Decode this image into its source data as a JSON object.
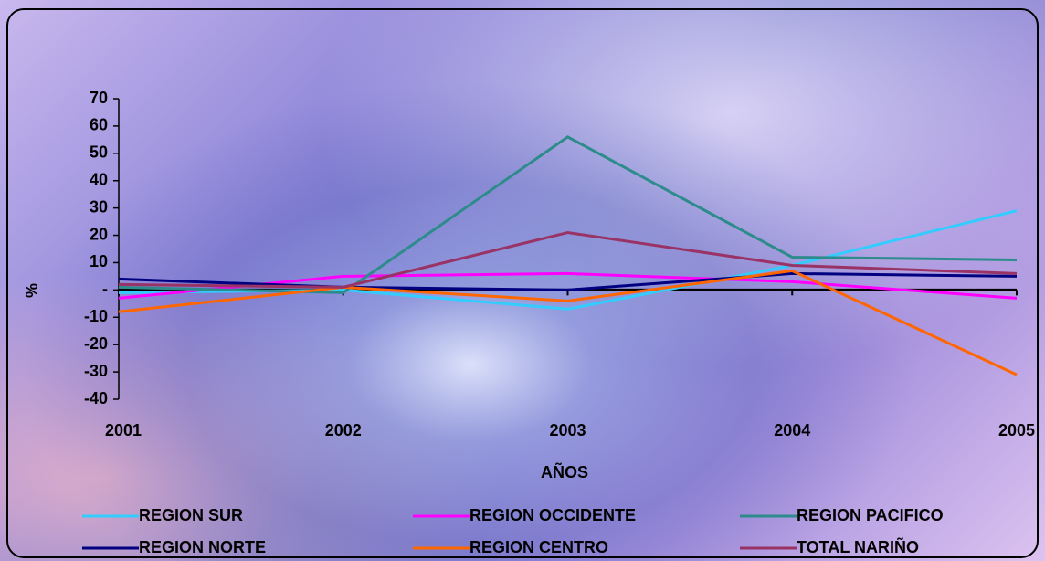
{
  "chart_data": {
    "type": "line",
    "x_label": "AÑOS",
    "y_label": "%",
    "categories": [
      "2001",
      "2002",
      "2003",
      "2004",
      "2005"
    ],
    "ylim": [
      -40,
      70
    ],
    "yticks": [
      -40,
      -30,
      -20,
      -10,
      {
        "value": 0,
        "label": "-"
      },
      10,
      20,
      30,
      40,
      50,
      60,
      70
    ],
    "series": [
      {
        "name": "REGION SUR",
        "color": "#33ccff",
        "values": [
          -1,
          0,
          -7,
          9,
          29
        ]
      },
      {
        "name": "REGION OCCIDENTE",
        "color": "#ff00ff",
        "values": [
          -3,
          5,
          6,
          3,
          -3
        ]
      },
      {
        "name": "REGION PACIFICO",
        "color": "#2e8b8b",
        "values": [
          1,
          -1,
          56,
          12,
          11
        ]
      },
      {
        "name": "REGION NORTE",
        "color": "#000080",
        "values": [
          4,
          1,
          0,
          6,
          5
        ]
      },
      {
        "name": "REGION CENTRO",
        "color": "#ff6600",
        "values": [
          -8,
          1,
          -4,
          7,
          -31
        ]
      },
      {
        "name": "TOTAL NARIÑO",
        "color": "#993366",
        "values": [
          2,
          1,
          21,
          9,
          6
        ]
      }
    ]
  }
}
